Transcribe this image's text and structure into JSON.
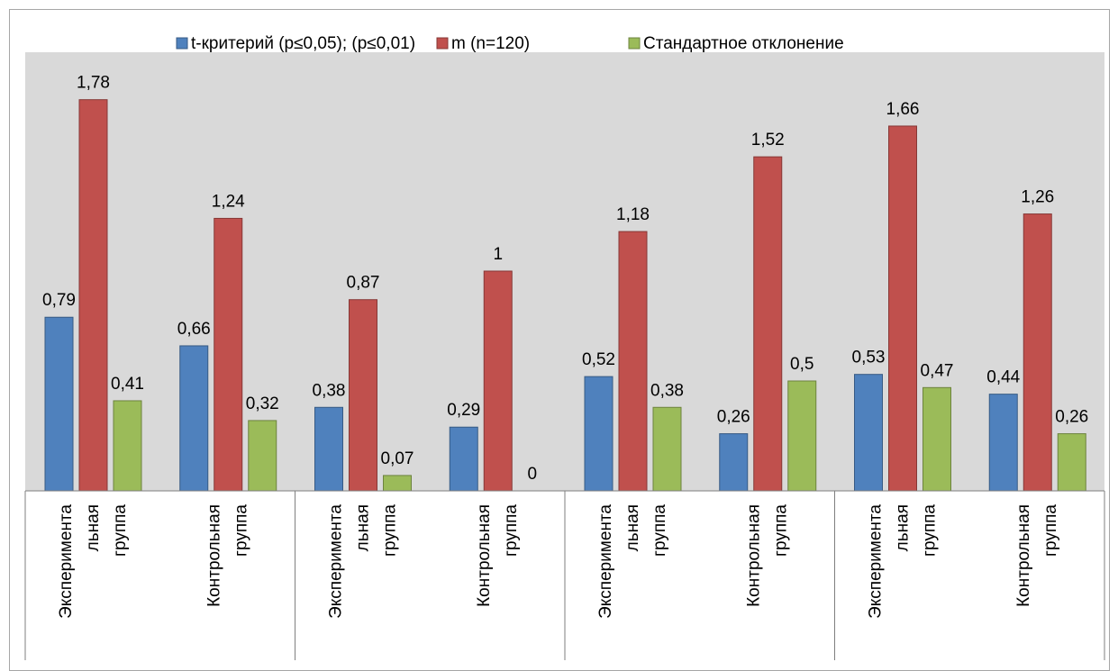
{
  "chart_data": {
    "type": "bar",
    "title": "",
    "xlabel": "",
    "ylabel": "",
    "ylim": [
      0,
      2
    ],
    "grid": false,
    "legend_position": "top",
    "categories": [
      "Эксперимента льная группа",
      "Контрольная группа",
      "Эксперимента льная группа",
      "Контрольная группа",
      "Эксперимента льная группа",
      "Контрольная группа",
      "Эксперимента льная группа",
      "Контрольная группа"
    ],
    "category_lines": [
      [
        "Эксперимента",
        "льная",
        "группа"
      ],
      [
        "Контрольная",
        "группа"
      ],
      [
        "Эксперимента",
        "льная",
        "группа"
      ],
      [
        "Контрольная",
        "группа"
      ],
      [
        "Эксперимента",
        "льная",
        "группа"
      ],
      [
        "Контрольная",
        "группа"
      ],
      [
        "Эксперимента",
        "льная",
        "группа"
      ],
      [
        "Контрольная",
        "группа"
      ]
    ],
    "series": [
      {
        "name": "t-критерий (p≤0,05); (p≤0,01)",
        "color": "#4f81bd",
        "values": [
          0.79,
          0.66,
          0.38,
          0.29,
          0.52,
          0.26,
          0.53,
          0.44
        ],
        "labels": [
          "0,79",
          "0,66",
          "0,38",
          "0,29",
          "0,52",
          "0,26",
          "0,53",
          "0,44"
        ]
      },
      {
        "name": "m (n=120)",
        "color": "#c0504d",
        "values": [
          1.78,
          1.24,
          0.87,
          1.0,
          1.18,
          1.52,
          1.66,
          1.26
        ],
        "labels": [
          "1,78",
          "1,24",
          "0,87",
          "1",
          "1,18",
          "1,52",
          "1,66",
          "1,26"
        ]
      },
      {
        "name": "Стандартное отклонение",
        "color": "#9bbb59",
        "values": [
          0.41,
          0.32,
          0.07,
          0,
          0.38,
          0.5,
          0.47,
          0.26
        ],
        "labels": [
          "0,41",
          "0,32",
          "0,07",
          "0",
          "0,38",
          "0,5",
          "0,47",
          "0,26"
        ]
      }
    ]
  }
}
